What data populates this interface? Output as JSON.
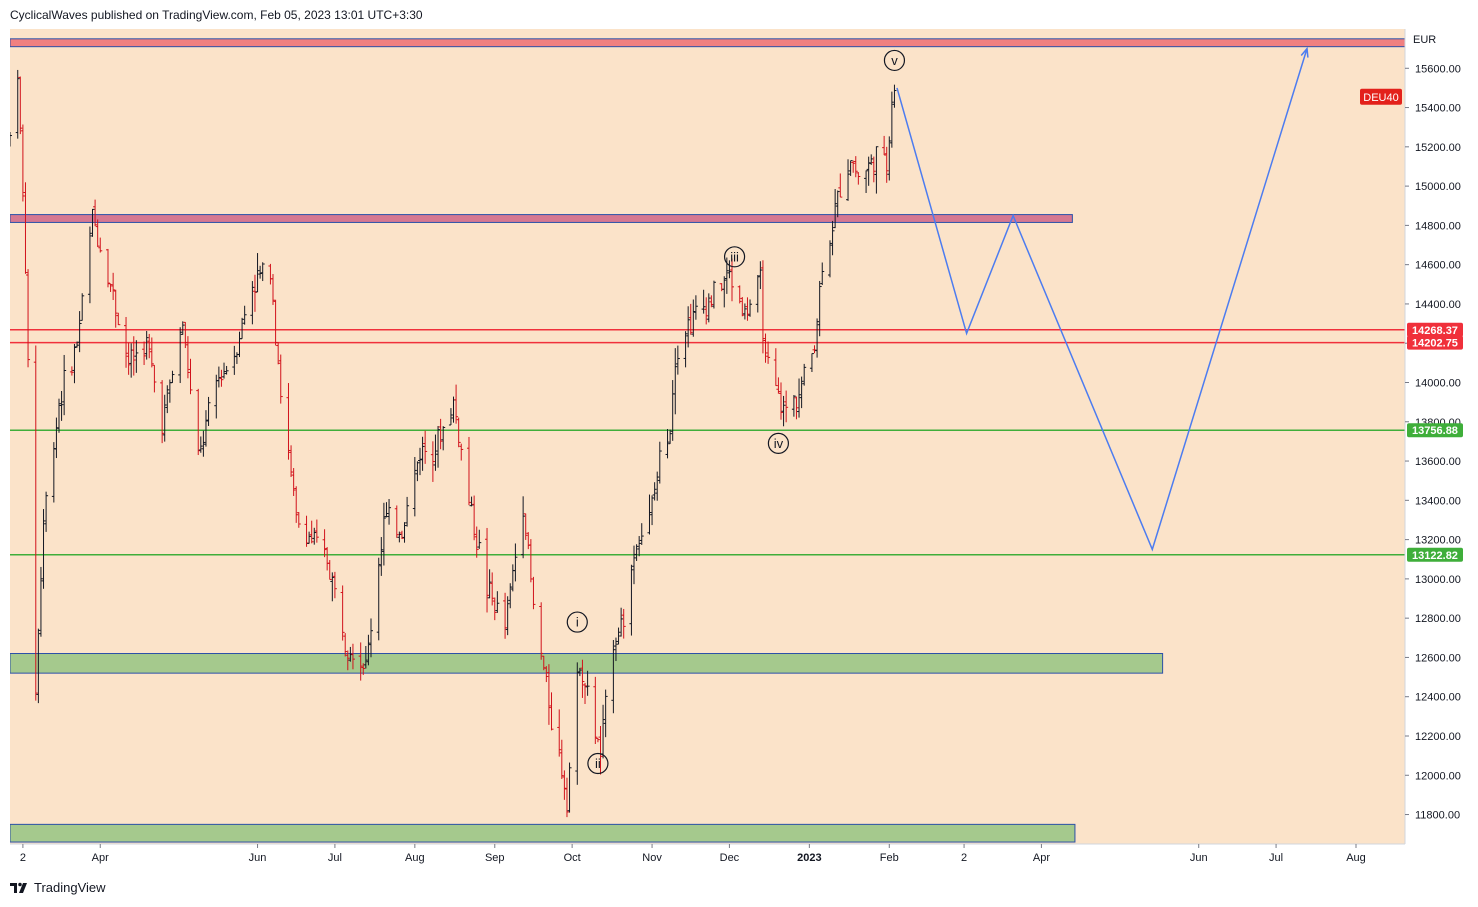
{
  "header": {
    "text": "CyclicalWaves published on TradingView.com, Feb 05, 2023 13:01 UTC+3:30"
  },
  "footer": {
    "brand": "TradingView"
  },
  "colors": {
    "background": "#fbe3c9",
    "bar_up": "#131722",
    "bar_down": "#d1121b",
    "projection": "#4c7cf0",
    "resistance_zone": "#f08080",
    "support_zone": "#a5c98d",
    "level_red": "#f0303b",
    "level_green": "#3fae3a"
  },
  "chart_data": {
    "type": "ohlc",
    "symbol": "DEU40",
    "currency": "EUR",
    "ylim": [
      11650,
      15800
    ],
    "y_ticks": [
      11800,
      12000,
      12200,
      12400,
      12600,
      12800,
      13000,
      13200,
      13400,
      13600,
      13800,
      14000,
      14200,
      14400,
      14600,
      14800,
      15000,
      15200,
      15400,
      15600
    ],
    "x_range": [
      "2022-02-25",
      "2023-08-20"
    ],
    "x_ticks": [
      {
        "label": "2",
        "date": "2022-03-02",
        "bold": false
      },
      {
        "label": "Apr",
        "date": "2022-04-01",
        "bold": false
      },
      {
        "label": "Jun",
        "date": "2022-06-01",
        "bold": false
      },
      {
        "label": "Jul",
        "date": "2022-07-01",
        "bold": false
      },
      {
        "label": "Aug",
        "date": "2022-08-01",
        "bold": false
      },
      {
        "label": "Sep",
        "date": "2022-09-01",
        "bold": false
      },
      {
        "label": "Oct",
        "date": "2022-10-01",
        "bold": false
      },
      {
        "label": "Nov",
        "date": "2022-11-01",
        "bold": false
      },
      {
        "label": "Dec",
        "date": "2022-12-01",
        "bold": false
      },
      {
        "label": "2023",
        "date": "2023-01-01",
        "bold": true
      },
      {
        "label": "Feb",
        "date": "2023-02-01",
        "bold": false
      },
      {
        "label": "2",
        "date": "2023-03-02",
        "bold": false
      },
      {
        "label": "Apr",
        "date": "2023-04-01",
        "bold": false
      },
      {
        "label": "Jun",
        "date": "2023-06-01",
        "bold": false
      },
      {
        "label": "Jul",
        "date": "2023-07-01",
        "bold": false
      },
      {
        "label": "Aug",
        "date": "2023-08-01",
        "bold": false
      }
    ],
    "price_path": [
      [
        "2022-02-25",
        15250
      ],
      [
        "2022-02-28",
        15600
      ],
      [
        "2022-03-03",
        14600
      ],
      [
        "2022-03-07",
        12450
      ],
      [
        "2022-03-10",
        13300
      ],
      [
        "2022-03-16",
        13900
      ],
      [
        "2022-03-23",
        14200
      ],
      [
        "2022-03-29",
        14850
      ],
      [
        "2022-04-05",
        14500
      ],
      [
        "2022-04-12",
        14100
      ],
      [
        "2022-04-19",
        14200
      ],
      [
        "2022-04-25",
        13800
      ],
      [
        "2022-05-03",
        14300
      ],
      [
        "2022-05-09",
        13600
      ],
      [
        "2022-05-16",
        14000
      ],
      [
        "2022-05-23",
        14150
      ],
      [
        "2022-05-30",
        14500
      ],
      [
        "2022-06-06",
        14600
      ],
      [
        "2022-06-10",
        13950
      ],
      [
        "2022-06-16",
        13300
      ],
      [
        "2022-06-22",
        13200
      ],
      [
        "2022-06-28",
        13100
      ],
      [
        "2022-07-05",
        12700
      ],
      [
        "2022-07-08",
        12650
      ],
      [
        "2022-07-13",
        12550
      ],
      [
        "2022-07-20",
        13300
      ],
      [
        "2022-07-27",
        13250
      ],
      [
        "2022-08-03",
        13650
      ],
      [
        "2022-08-10",
        13700
      ],
      [
        "2022-08-16",
        13900
      ],
      [
        "2022-08-22",
        13400
      ],
      [
        "2022-08-29",
        12950
      ],
      [
        "2022-09-05",
        12750
      ],
      [
        "2022-09-12",
        13400
      ],
      [
        "2022-09-16",
        12850
      ],
      [
        "2022-09-23",
        12300
      ],
      [
        "2022-09-29",
        11900
      ],
      [
        "2022-10-04",
        12600
      ],
      [
        "2022-10-07",
        12400
      ],
      [
        "2022-10-12",
        12100
      ],
      [
        "2022-10-17",
        12700
      ],
      [
        "2022-10-21",
        12800
      ],
      [
        "2022-10-26",
        13200
      ],
      [
        "2022-10-31",
        13300
      ],
      [
        "2022-11-04",
        13600
      ],
      [
        "2022-11-08",
        13800
      ],
      [
        "2022-11-10",
        14150
      ],
      [
        "2022-11-15",
        14300
      ],
      [
        "2022-11-22",
        14400
      ],
      [
        "2022-11-28",
        14500
      ],
      [
        "2022-12-01",
        14550
      ],
      [
        "2022-12-07",
        14350
      ],
      [
        "2022-12-13",
        14500
      ],
      [
        "2022-12-15",
        14100
      ],
      [
        "2022-12-19",
        13950
      ],
      [
        "2022-12-22",
        13850
      ],
      [
        "2022-12-28",
        13950
      ],
      [
        "2023-01-03",
        14200
      ],
      [
        "2023-01-06",
        14600
      ],
      [
        "2023-01-10",
        14800
      ],
      [
        "2023-01-13",
        15000
      ],
      [
        "2023-01-17",
        15150
      ],
      [
        "2023-01-20",
        15050
      ],
      [
        "2023-01-24",
        15100
      ],
      [
        "2023-01-27",
        15150
      ],
      [
        "2023-01-31",
        15100
      ],
      [
        "2023-02-02",
        15450
      ],
      [
        "2023-02-03",
        15500
      ]
    ],
    "wave_labels": [
      {
        "label": "v",
        "date": "2023-02-03",
        "price": 15640
      },
      {
        "label": "iii",
        "date": "2022-12-03",
        "price": 14640
      },
      {
        "label": "iv",
        "date": "2022-12-20",
        "price": 13690
      },
      {
        "label": "i",
        "date": "2022-10-03",
        "price": 12780
      },
      {
        "label": "ii",
        "date": "2022-10-11",
        "price": 12060
      }
    ],
    "projection_path": [
      [
        "2023-02-04",
        15500
      ],
      [
        "2023-03-03",
        14250
      ],
      [
        "2023-03-21",
        14850
      ],
      [
        "2023-05-14",
        13150
      ],
      [
        "2023-07-13",
        15700
      ]
    ],
    "horizontal_levels": [
      {
        "price": 14268.37,
        "label": "14268.37",
        "color": "#f0303b"
      },
      {
        "price": 14202.75,
        "label": "14202.75",
        "color": "#f0303b"
      },
      {
        "price": 13756.88,
        "label": "13756.88",
        "color": "#3fae3a"
      },
      {
        "price": 13122.82,
        "label": "13122.82",
        "color": "#3fae3a"
      }
    ],
    "zones": [
      {
        "name": "resistance-zone-top",
        "price_from": 15710,
        "price_to": 15750,
        "date_from": "2022-02-25",
        "date_to": "2023-08-20",
        "color": "#f08080"
      },
      {
        "name": "resistance-zone-mid",
        "price_from": 14815,
        "price_to": 14855,
        "date_from": "2022-02-25",
        "date_to": "2023-04-13",
        "color": "#d67891"
      },
      {
        "name": "support-zone-upper",
        "price_from": 12520,
        "price_to": 12620,
        "date_from": "2022-02-25",
        "date_to": "2023-05-18",
        "color": "#a5c98d"
      },
      {
        "name": "support-zone-lower",
        "price_from": 11660,
        "price_to": 11750,
        "date_from": "2022-02-25",
        "date_to": "2023-04-14",
        "color": "#a5c98d"
      }
    ],
    "symbol_badge": {
      "price": 15455,
      "label": "DEU40"
    }
  }
}
